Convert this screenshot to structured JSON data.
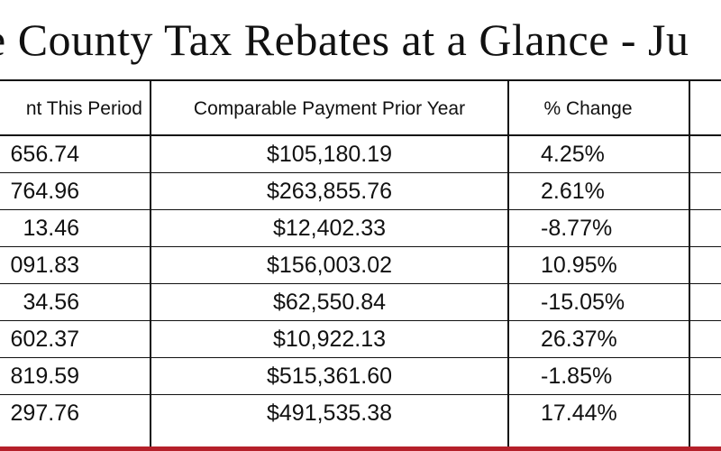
{
  "title": "e County Tax Rebates at a Glance - Ju",
  "columns": {
    "payment_this_period": "nt This Period",
    "comparable_prior_year": "Comparable Payment Prior Year",
    "percent_change": "% Change"
  },
  "rows": [
    {
      "this_period": "656.74",
      "prior_year": "$105,180.19",
      "change": "4.25%"
    },
    {
      "this_period": "764.96",
      "prior_year": "$263,855.76",
      "change": "2.61%"
    },
    {
      "this_period": "13.46",
      "prior_year": "$12,402.33",
      "change": "-8.77%"
    },
    {
      "this_period": "091.83",
      "prior_year": "$156,003.02",
      "change": "10.95%"
    },
    {
      "this_period": "34.56",
      "prior_year": "$62,550.84",
      "change": "-15.05%"
    },
    {
      "this_period": "602.37",
      "prior_year": "$10,922.13",
      "change": "26.37%"
    },
    {
      "this_period": "819.59",
      "prior_year": "$515,361.60",
      "change": "-1.85%"
    },
    {
      "this_period": "297.76",
      "prior_year": "$491,535.38",
      "change": "17.44%"
    }
  ],
  "colors": {
    "accent_band": "#b5202a",
    "text": "#111111"
  }
}
